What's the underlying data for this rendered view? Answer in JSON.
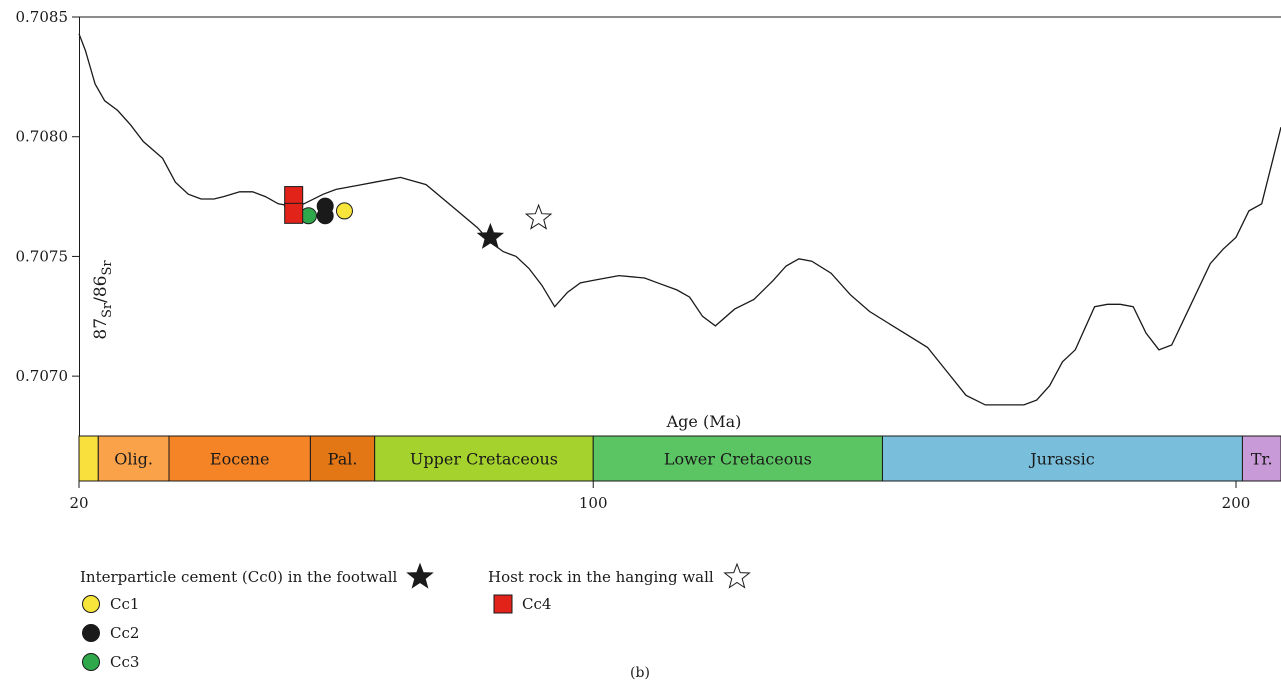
{
  "chart_data": {
    "type": "line",
    "xlabel": "Age (Ma)",
    "ylabel": {
      "sup1": "87",
      "sub1": "Sr",
      "mid": "/",
      "sup2": "86",
      "sub2": "Sr"
    },
    "xlim": [
      20,
      207
    ],
    "ylim": [
      0.70675,
      0.7085
    ],
    "x_ticks": [
      20,
      100,
      200
    ],
    "y_ticks": [
      {
        "value": 0.7085,
        "label": "0.7085"
      },
      {
        "value": 0.708,
        "label": "0.7080"
      },
      {
        "value": 0.7075,
        "label": "0.7075"
      },
      {
        "value": 0.707,
        "label": "0.7070"
      }
    ],
    "seawater_curve": {
      "x": [
        20,
        21,
        22.5,
        24,
        26,
        28,
        30,
        33,
        35,
        37,
        39,
        41,
        42.5,
        45,
        47,
        49,
        51,
        53,
        55,
        58,
        60,
        62,
        64,
        66,
        68,
        70,
        74,
        78,
        82,
        84,
        86,
        88,
        90,
        92,
        94,
        96,
        98,
        100,
        104,
        108,
        110,
        113,
        115,
        117,
        119,
        122,
        125,
        128,
        130,
        132,
        134,
        137,
        140,
        143,
        146,
        149,
        152,
        155,
        158,
        161,
        164,
        167,
        169,
        171,
        173,
        175,
        178,
        180,
        182,
        184,
        186,
        188,
        190,
        193,
        196,
        198,
        200,
        202,
        204,
        207
      ],
      "y": [
        0.70843,
        0.70836,
        0.70822,
        0.70815,
        0.70811,
        0.70805,
        0.70798,
        0.70791,
        0.70781,
        0.70776,
        0.70774,
        0.70774,
        0.70775,
        0.70777,
        0.70777,
        0.70775,
        0.70772,
        0.70771,
        0.70772,
        0.70776,
        0.70778,
        0.70779,
        0.7078,
        0.70781,
        0.70782,
        0.70783,
        0.7078,
        0.70771,
        0.70762,
        0.70756,
        0.70752,
        0.7075,
        0.70745,
        0.70738,
        0.70729,
        0.70735,
        0.70739,
        0.7074,
        0.70742,
        0.70741,
        0.70739,
        0.70736,
        0.70733,
        0.70725,
        0.70721,
        0.70728,
        0.70732,
        0.7074,
        0.70746,
        0.70749,
        0.70748,
        0.70743,
        0.70734,
        0.70727,
        0.70722,
        0.70717,
        0.70712,
        0.70702,
        0.70692,
        0.70688,
        0.70688,
        0.70688,
        0.7069,
        0.70696,
        0.70706,
        0.70711,
        0.70729,
        0.7073,
        0.7073,
        0.70729,
        0.70718,
        0.70711,
        0.70713,
        0.7073,
        0.70747,
        0.70753,
        0.70758,
        0.70769,
        0.70772,
        0.70804
      ]
    },
    "series": [
      {
        "name": "Interparticle cement (Cc0) in the footwall",
        "symbol": "star-filled",
        "color": "#1a1a1a",
        "points": [
          {
            "x": 84,
            "y": 0.70758
          }
        ]
      },
      {
        "name": "Host rock in the hanging wall",
        "symbol": "star-open",
        "color": "#ffffff",
        "points": [
          {
            "x": 91.5,
            "y": 0.70766
          }
        ]
      },
      {
        "name": "Cc1",
        "symbol": "circle",
        "color": "#f7e53b",
        "points": [
          {
            "x": 61.3,
            "y": 0.70769
          }
        ]
      },
      {
        "name": "Cc2",
        "symbol": "circle",
        "color": "#1a1a1a",
        "points": [
          {
            "x": 58.3,
            "y": 0.70771
          },
          {
            "x": 58.3,
            "y": 0.70767
          }
        ]
      },
      {
        "name": "Cc3",
        "symbol": "circle",
        "color": "#2ea84a",
        "points": [
          {
            "x": 55.7,
            "y": 0.70767
          }
        ]
      },
      {
        "name": "Cc4",
        "symbol": "square",
        "color": "#e2231a",
        "points": [
          {
            "x": 53.4,
            "y": 0.70775
          },
          {
            "x": 53.4,
            "y": 0.70768
          }
        ]
      }
    ],
    "periods": [
      {
        "label": "",
        "from": 20,
        "to": 23,
        "color": "#f9e03c"
      },
      {
        "label": "Olig.",
        "from": 23,
        "to": 34,
        "color": "#f9a24a"
      },
      {
        "label": "Eocene",
        "from": 34,
        "to": 56,
        "color": "#f58427"
      },
      {
        "label": "Pal.",
        "from": 56,
        "to": 66,
        "color": "#e37615"
      },
      {
        "label": "Upper Cretaceous",
        "from": 66,
        "to": 100,
        "color": "#a6d22e"
      },
      {
        "label": "Lower Cretaceous",
        "from": 100,
        "to": 145,
        "color": "#5cc563"
      },
      {
        "label": "Jurassic",
        "from": 145,
        "to": 201,
        "color": "#79bfdc"
      },
      {
        "label": "Tr.",
        "from": 201,
        "to": 207,
        "color": "#c99ad8"
      }
    ],
    "panel_label": "(b)",
    "grid": false
  }
}
